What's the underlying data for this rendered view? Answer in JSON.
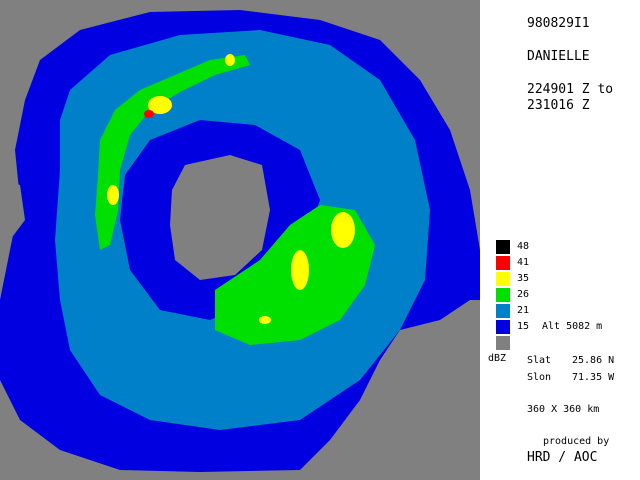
{
  "header": {
    "flight_id": "980829I1",
    "storm_name": "DANIELLE",
    "time_start": "224901 Z to",
    "time_end": "231016 Z"
  },
  "legend": {
    "items": [
      {
        "label": "48",
        "color": "#000000"
      },
      {
        "label": "41",
        "color": "#ff0000"
      },
      {
        "label": "35",
        "color": "#ffff00"
      },
      {
        "label": "26",
        "color": "#00e000"
      },
      {
        "label": "21",
        "color": "#0080c8"
      },
      {
        "label": "15",
        "color": "#0000e0"
      },
      {
        "label": "",
        "color": "#808080"
      }
    ],
    "unit": "dBZ",
    "altitude": "Alt  5082 m"
  },
  "position": {
    "slat_label": "Slat",
    "slat_value": "25.86 N",
    "slon_label": "Slon",
    "slon_value": "71.35 W"
  },
  "domain_size": "360 X 360 km",
  "credit": {
    "line1": "produced by",
    "line2": "HRD / AOC"
  }
}
